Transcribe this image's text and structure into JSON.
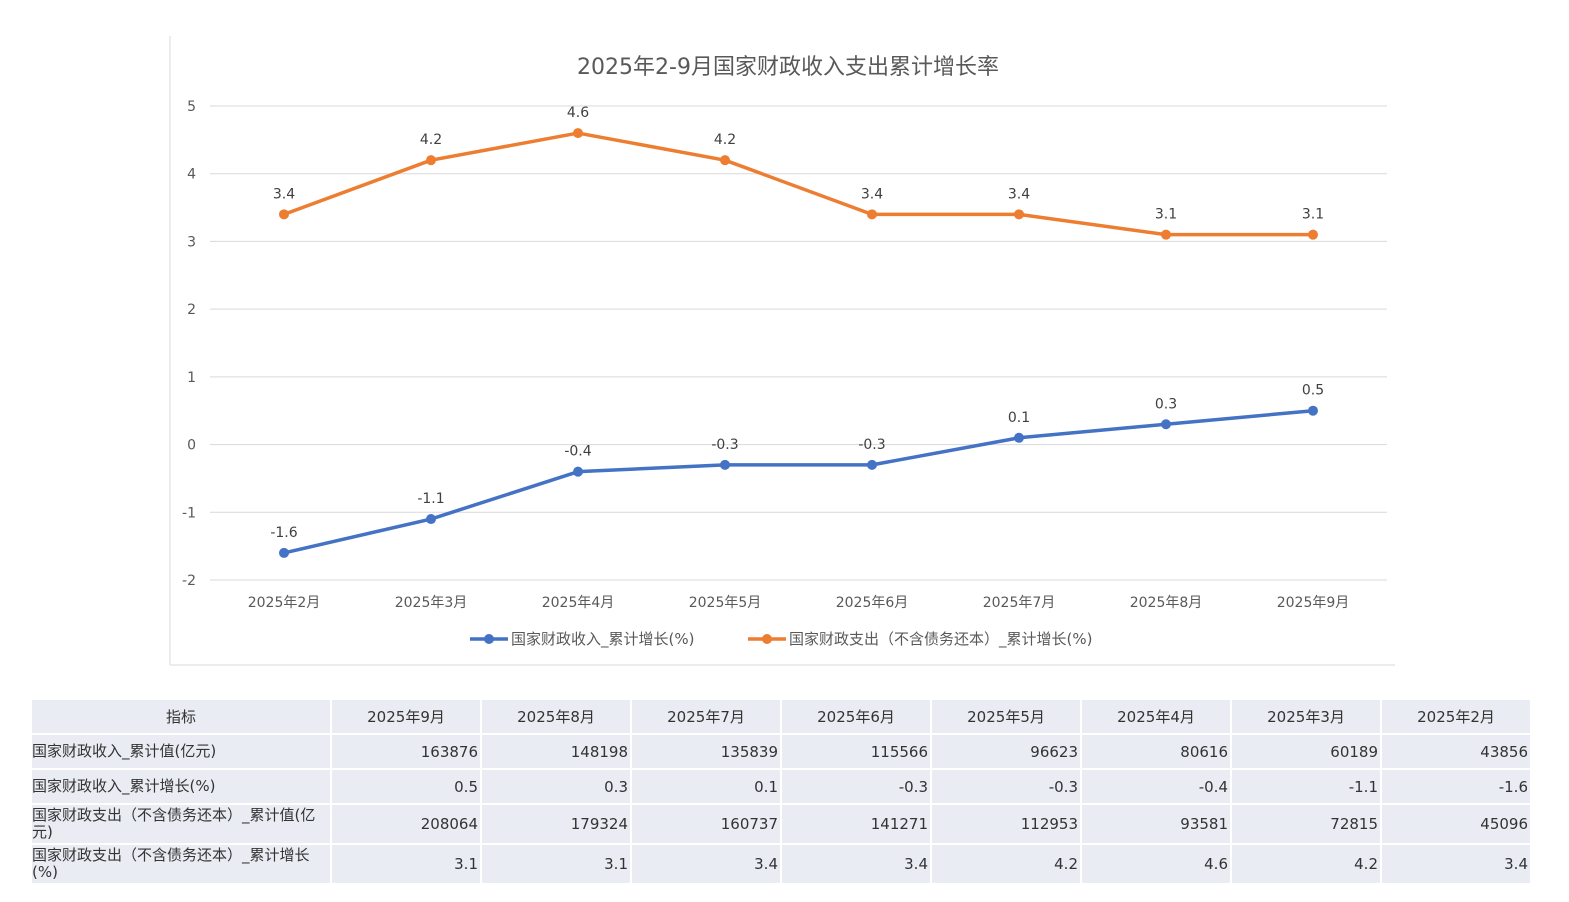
{
  "chart_data": {
    "type": "line",
    "title": "2025年2-9月国家财政收入支出累计增长率",
    "categories": [
      "2025年2月",
      "2025年3月",
      "2025年4月",
      "2025年5月",
      "2025年6月",
      "2025年7月",
      "2025年8月",
      "2025年9月"
    ],
    "ylim": [
      -2,
      5
    ],
    "yticks": [
      "5",
      "4",
      "3",
      "2",
      "1",
      "0",
      "-1",
      "-2"
    ],
    "grid": true,
    "legend_position": "bottom",
    "series": [
      {
        "name": "国家财政收入_累计增长(%)",
        "color": "#4472c4",
        "values": [
          -1.6,
          -1.1,
          -0.4,
          -0.3,
          -0.3,
          0.1,
          0.3,
          0.5
        ],
        "labels": [
          "-1.6",
          "-1.1",
          "-0.4",
          "-0.3",
          "-0.3",
          "0.1",
          "0.3",
          "0.5"
        ]
      },
      {
        "name": "国家财政支出（不含债务还本）_累计增长(%)",
        "color": "#ed7d31",
        "values": [
          3.4,
          4.2,
          4.6,
          4.2,
          3.4,
          3.4,
          3.1,
          3.1
        ],
        "labels": [
          "3.4",
          "4.2",
          "4.6",
          "4.2",
          "3.4",
          "3.4",
          "3.1",
          "3.1"
        ]
      }
    ]
  },
  "table": {
    "header_label": "指标",
    "columns": [
      "2025年9月",
      "2025年8月",
      "2025年7月",
      "2025年6月",
      "2025年5月",
      "2025年4月",
      "2025年3月",
      "2025年2月"
    ],
    "rows": [
      {
        "label": "国家财政收入_累计值(亿元)",
        "values": [
          "163876",
          "148198",
          "135839",
          "115566",
          "96623",
          "80616",
          "60189",
          "43856"
        ]
      },
      {
        "label": "国家财政收入_累计增长(%)",
        "values": [
          "0.5",
          "0.3",
          "0.1",
          "-0.3",
          "-0.3",
          "-0.4",
          "-1.1",
          "-1.6"
        ]
      },
      {
        "label": "国家财政支出（不含债务还本）_累计值(亿元)",
        "values": [
          "208064",
          "179324",
          "160737",
          "141271",
          "112953",
          "93581",
          "72815",
          "45096"
        ]
      },
      {
        "label": "国家财政支出（不含债务还本）_累计增长(%)",
        "values": [
          "3.1",
          "3.1",
          "3.4",
          "3.4",
          "4.2",
          "4.6",
          "4.2",
          "3.4"
        ]
      }
    ]
  }
}
